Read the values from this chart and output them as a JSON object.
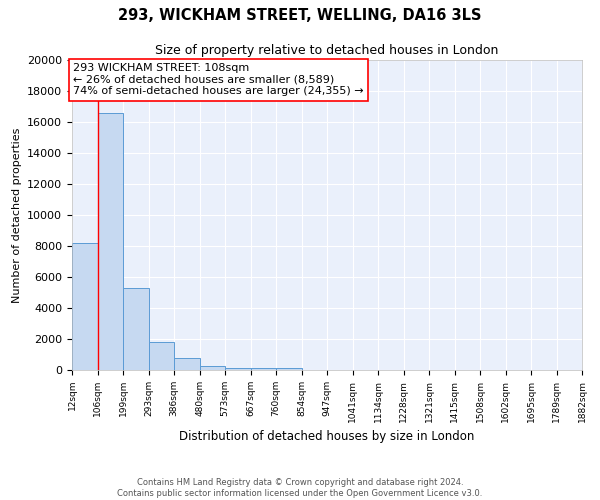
{
  "title": "293, WICKHAM STREET, WELLING, DA16 3LS",
  "subtitle": "Size of property relative to detached houses in London",
  "xlabel": "Distribution of detached houses by size in London",
  "ylabel": "Number of detached properties",
  "bin_edges": [
    12,
    106,
    199,
    293,
    386,
    480,
    573,
    667,
    760,
    854,
    947,
    1041,
    1134,
    1228,
    1321,
    1415,
    1508,
    1602,
    1695,
    1789,
    1882
  ],
  "bin_labels": [
    "12sqm",
    "106sqm",
    "199sqm",
    "293sqm",
    "386sqm",
    "480sqm",
    "573sqm",
    "667sqm",
    "760sqm",
    "854sqm",
    "947sqm",
    "1041sqm",
    "1134sqm",
    "1228sqm",
    "1321sqm",
    "1415sqm",
    "1508sqm",
    "1602sqm",
    "1695sqm",
    "1789sqm",
    "1882sqm"
  ],
  "bar_heights": [
    8200,
    16600,
    5300,
    1800,
    750,
    250,
    150,
    100,
    100,
    0,
    0,
    0,
    0,
    0,
    0,
    0,
    0,
    0,
    0,
    0
  ],
  "bar_color": "#c6d9f1",
  "bar_edge_color": "#5b9bd5",
  "red_line_x": 108,
  "annotation_line1": "293 WICKHAM STREET: 108sqm",
  "annotation_line2": "← 26% of detached houses are smaller (8,589)",
  "annotation_line3": "74% of semi-detached houses are larger (24,355) →",
  "ylim": [
    0,
    20000
  ],
  "yticks": [
    0,
    2000,
    4000,
    6000,
    8000,
    10000,
    12000,
    14000,
    16000,
    18000,
    20000
  ],
  "bg_color": "#eaf0fb",
  "grid_color": "#ffffff",
  "footer_line1": "Contains HM Land Registry data © Crown copyright and database right 2024.",
  "footer_line2": "Contains public sector information licensed under the Open Government Licence v3.0."
}
